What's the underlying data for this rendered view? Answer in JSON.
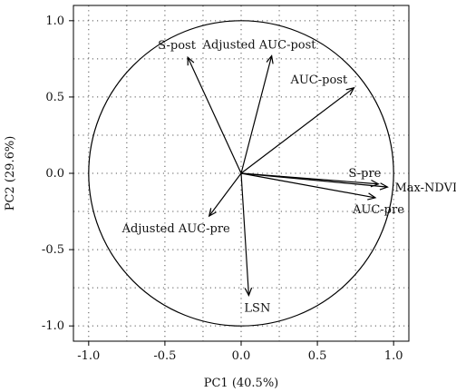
{
  "chart_data": {
    "type": "scatter",
    "subtype": "pca-correlation-circle",
    "title": "",
    "xlabel": "PC1 (40.5%)",
    "ylabel": "PC2 (29.6%)",
    "xlim": [
      -1.1,
      1.1
    ],
    "ylim": [
      -1.1,
      1.1
    ],
    "xticks": [
      -1.0,
      -0.5,
      0.0,
      0.5,
      1.0
    ],
    "yticks": [
      -1.0,
      -0.5,
      0.0,
      0.5,
      1.0
    ],
    "xtick_labels": [
      "-1.0",
      "-0.5",
      "0.0",
      "0.5",
      "1.0"
    ],
    "ytick_labels": [
      "-1.0",
      "-0.5",
      "0.0",
      "0.5",
      "1.0"
    ],
    "grid": true,
    "grid_style": "dotted",
    "unit_circle": true,
    "vectors": [
      {
        "name": "S-post",
        "x": -0.35,
        "y": 0.76
      },
      {
        "name": "Adjusted AUC-post",
        "x": 0.2,
        "y": 0.77
      },
      {
        "name": "AUC-post",
        "x": 0.74,
        "y": 0.56
      },
      {
        "name": "S-pre",
        "x": 0.9,
        "y": -0.07
      },
      {
        "name": "Max-NDVI",
        "x": 0.96,
        "y": -0.09
      },
      {
        "name": "AUC-pre",
        "x": 0.88,
        "y": -0.16
      },
      {
        "name": "Adjusted AUC-pre",
        "x": -0.21,
        "y": -0.28
      },
      {
        "name": "LSN",
        "x": 0.05,
        "y": -0.8
      }
    ],
    "colors": {
      "axis": "#000000",
      "grid": "#555555",
      "arrow": "#000000"
    }
  }
}
